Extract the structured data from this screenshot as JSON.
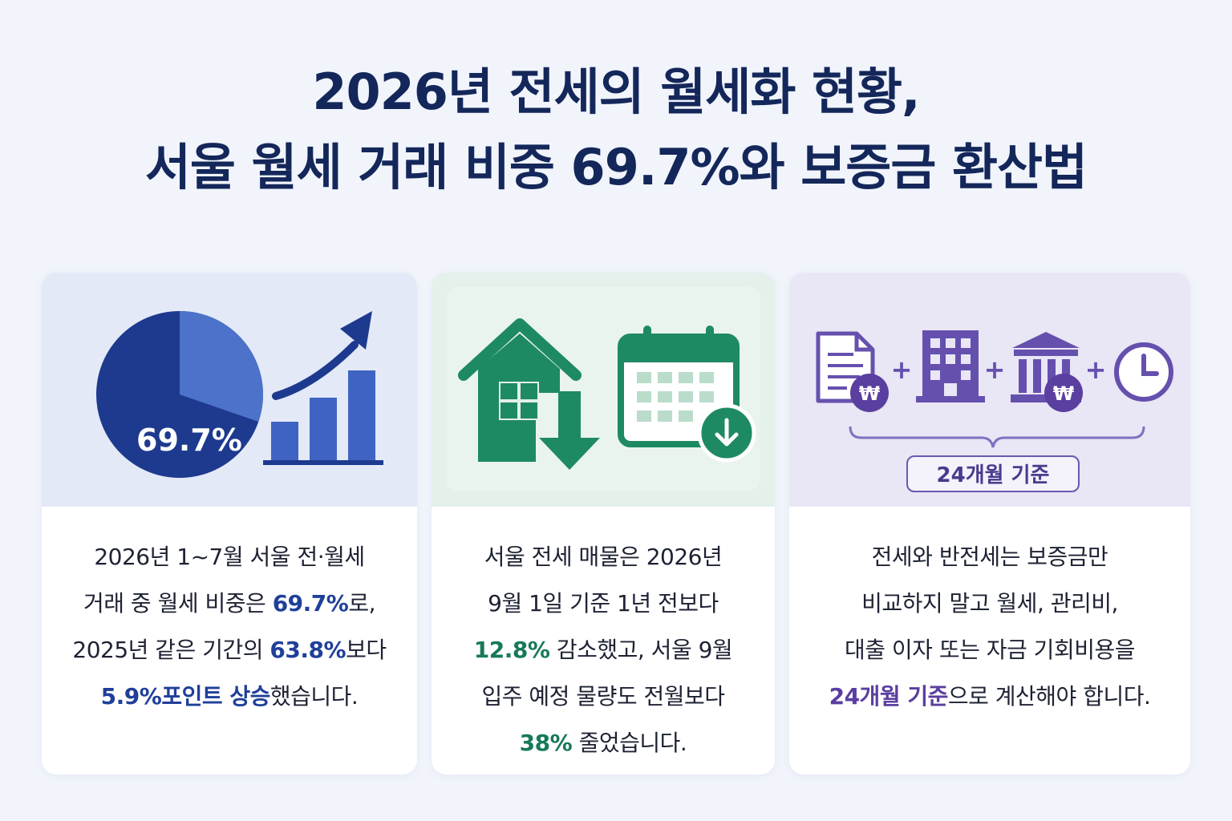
{
  "title": {
    "line1": "2026년 전세의 월세화 현황,",
    "line2": "서울 월세 거래 비중 69.7%와 보증금 환산법"
  },
  "card1": {
    "pie_label": "69.7%",
    "pie_value_percent": 69.7,
    "icons": [
      "pie-chart-icon",
      "bar-chart-icon",
      "trend-arrow-icon"
    ],
    "lines": [
      {
        "parts": [
          {
            "t": "2026년 1~7월 서울 전·월세",
            "hl": false
          }
        ]
      },
      {
        "parts": [
          {
            "t": "거래 중 월세 비중은 ",
            "hl": false
          },
          {
            "t": "69.7%",
            "hl": true
          },
          {
            "t": "로,",
            "hl": false
          }
        ]
      },
      {
        "parts": [
          {
            "t": "2025년 같은 기간의 ",
            "hl": false
          },
          {
            "t": "63.8%",
            "hl": true
          },
          {
            "t": "보다",
            "hl": false
          }
        ]
      },
      {
        "parts": [
          {
            "t": "5.9%포인트 상승",
            "hl": true
          },
          {
            "t": "했습니다.",
            "hl": false
          }
        ]
      }
    ]
  },
  "card2": {
    "icons": [
      "house-down-icon",
      "calendar-down-icon"
    ],
    "lines": [
      {
        "parts": [
          {
            "t": "서울 전세 매물은 2026년",
            "hl": false
          }
        ]
      },
      {
        "parts": [
          {
            "t": "9월 1일 기준 1년 전보다",
            "hl": false
          }
        ]
      },
      {
        "parts": [
          {
            "t": "12.8%",
            "hl": true
          },
          {
            "t": " 감소했고, 서울 9월",
            "hl": false
          }
        ]
      },
      {
        "parts": [
          {
            "t": "입주 예정 물량도 전월보다",
            "hl": false
          }
        ]
      },
      {
        "parts": [
          {
            "t": "38%",
            "hl": true
          },
          {
            "t": " 줄었습니다.",
            "hl": false
          }
        ]
      }
    ]
  },
  "card3": {
    "badge": "24개월 기준",
    "icons": [
      "document-won-icon",
      "building-icon",
      "bank-won-icon",
      "clock-icon"
    ],
    "lines": [
      {
        "parts": [
          {
            "t": "전세와 반전세는 보증금만",
            "hl": false
          }
        ]
      },
      {
        "parts": [
          {
            "t": "비교하지 말고 월세, 관리비,",
            "hl": false
          }
        ]
      },
      {
        "parts": [
          {
            "t": "대출 이자 또는 자금 기회비용을",
            "hl": false
          }
        ]
      },
      {
        "parts": [
          {
            "t": "24개월 기준",
            "hl": true
          },
          {
            "t": "으로 계산해야 합니다.",
            "hl": false
          }
        ]
      }
    ]
  },
  "colors": {
    "title": "#14275a",
    "blue": "#1f3f99",
    "green": "#177a57",
    "purple": "#5a3fa0"
  }
}
